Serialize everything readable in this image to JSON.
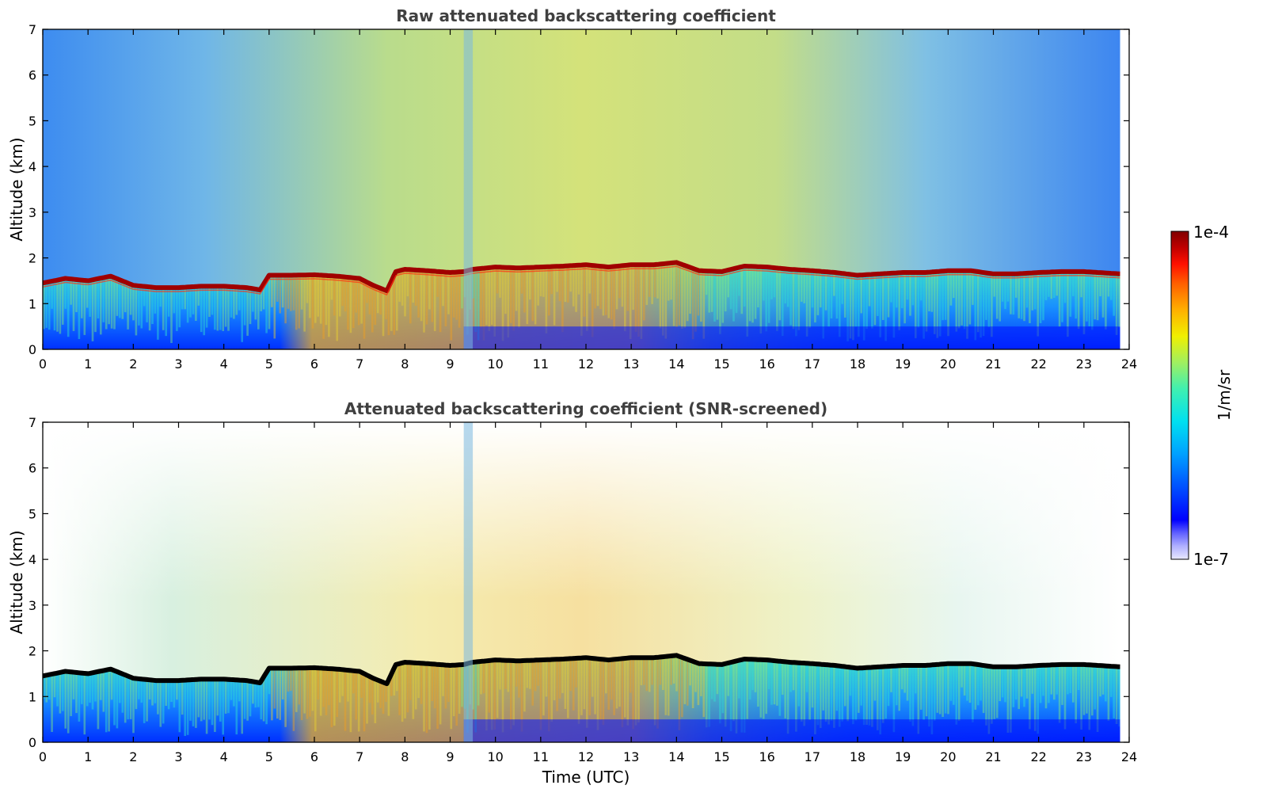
{
  "chart_data": [
    {
      "type": "heatmap",
      "title": "Raw attenuated backscattering coefficient",
      "xlabel": "",
      "ylabel": "Altitude (km)",
      "xlim": [
        0,
        24
      ],
      "ylim": [
        0,
        7
      ],
      "x_ticks": [
        0,
        1,
        2,
        3,
        4,
        5,
        6,
        7,
        8,
        9,
        10,
        11,
        12,
        13,
        14,
        15,
        16,
        17,
        18,
        19,
        20,
        21,
        22,
        23,
        24
      ],
      "y_ticks": [
        0,
        1,
        2,
        3,
        4,
        5,
        6,
        7
      ],
      "grid": false,
      "layer_top_km": {
        "time_utc": [
          0,
          0.5,
          1,
          1.5,
          2,
          2.5,
          3,
          3.5,
          4,
          4.5,
          4.8,
          5,
          5.5,
          6,
          6.5,
          7,
          7.3,
          7.6,
          7.8,
          8,
          8.5,
          9,
          9.3,
          9.5,
          10,
          10.5,
          11,
          11.5,
          12,
          12.5,
          13,
          13.5,
          14,
          14.5,
          15,
          15.5,
          16,
          16.5,
          17,
          17.5,
          18,
          18.5,
          19,
          19.5,
          20,
          20.5,
          21,
          21.5,
          22,
          22.5,
          23,
          23.8
        ],
        "altitude_km": [
          1.45,
          1.55,
          1.5,
          1.6,
          1.4,
          1.35,
          1.35,
          1.38,
          1.38,
          1.35,
          1.3,
          1.62,
          1.62,
          1.63,
          1.6,
          1.55,
          1.4,
          1.28,
          1.7,
          1.75,
          1.72,
          1.68,
          1.7,
          1.75,
          1.8,
          1.78,
          1.8,
          1.82,
          1.85,
          1.8,
          1.85,
          1.85,
          1.9,
          1.72,
          1.7,
          1.82,
          1.8,
          1.75,
          1.72,
          1.68,
          1.62,
          1.65,
          1.68,
          1.68,
          1.72,
          1.72,
          1.65,
          1.65,
          1.68,
          1.7,
          1.7,
          1.65
        ]
      }
    },
    {
      "type": "heatmap",
      "title": "Attenuated backscattering coefficient (SNR-screened)",
      "xlabel": "Time (UTC)",
      "ylabel": "Altitude (km)",
      "xlim": [
        0,
        24
      ],
      "ylim": [
        0,
        7
      ],
      "x_ticks": [
        0,
        1,
        2,
        3,
        4,
        5,
        6,
        7,
        8,
        9,
        10,
        11,
        12,
        13,
        14,
        15,
        16,
        17,
        18,
        19,
        20,
        21,
        22,
        23,
        24
      ],
      "y_ticks": [
        0,
        1,
        2,
        3,
        4,
        5,
        6,
        7
      ],
      "grid": false
    }
  ],
  "colorbar": {
    "label": "1/m/sr",
    "max_label": "1e-4",
    "min_label": "1e-7",
    "scale": "log",
    "colors": [
      "#e8e8ff",
      "#b0b0ff",
      "#6060ff",
      "#0000ff",
      "#0050ff",
      "#00a0ff",
      "#00e0f0",
      "#40f0b0",
      "#a0f060",
      "#f0f000",
      "#ffb000",
      "#ff6000",
      "#ff1000",
      "#c00000",
      "#800000"
    ]
  }
}
